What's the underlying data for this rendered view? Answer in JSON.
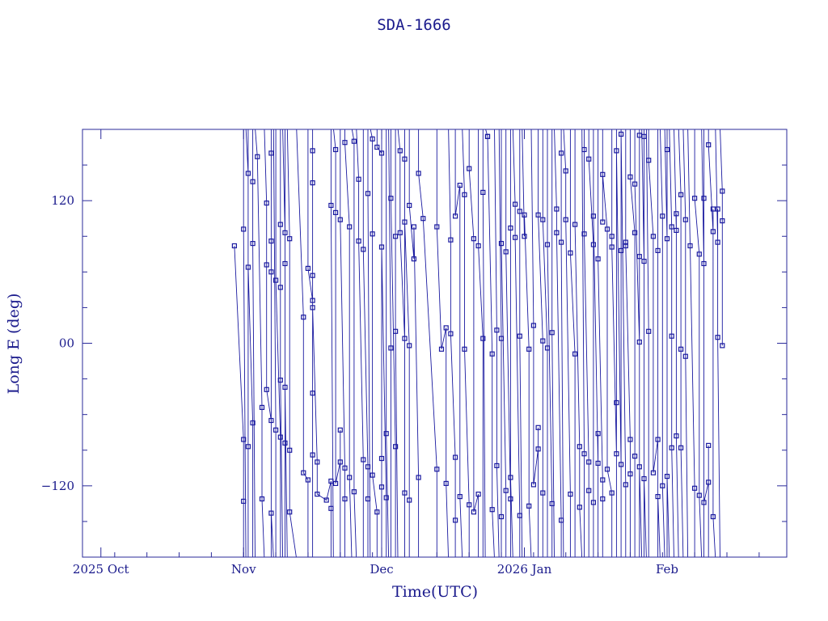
{
  "chart_data": {
    "type": "scatter",
    "title": "SDA-1666",
    "xlabel": "Time(UTC)",
    "ylabel": "Long E (deg)",
    "xlim": [
      "2025-09-27",
      "2026-02-27"
    ],
    "ylim": [
      -180,
      180
    ],
    "x_ticks": [
      {
        "date": "2025-10-01",
        "label": "2025 Oct"
      },
      {
        "date": "2025-11-01",
        "label": "Nov"
      },
      {
        "date": "2025-12-01",
        "label": "Dec"
      },
      {
        "date": "2026-01-01",
        "label": "2026 Jan"
      },
      {
        "date": "2026-02-01",
        "label": "Feb"
      }
    ],
    "y_ticks": [
      {
        "value": 120,
        "label": "120"
      },
      {
        "value": 0,
        "label": "00"
      },
      {
        "value": -120,
        "label": "−120"
      }
    ],
    "colors": {
      "line": "#1a1aa0",
      "text": "#1a1a8c",
      "frame": "#2a2a9a"
    },
    "points": [
      {
        "x": "2025-10-30",
        "y": 82
      },
      {
        "x": "2025-11-01",
        "y": -81
      },
      {
        "x": "2025-11-01",
        "y": -133
      },
      {
        "x": "2025-11-01",
        "y": 96
      },
      {
        "x": "2025-11-02",
        "y": 143
      },
      {
        "x": "2025-11-02",
        "y": -87
      },
      {
        "x": "2025-11-02",
        "y": 64
      },
      {
        "x": "2025-11-03",
        "y": -67
      },
      {
        "x": "2025-11-03",
        "y": 136
      },
      {
        "x": "2025-11-03",
        "y": 84
      },
      {
        "x": "2025-11-04",
        "y": 157
      },
      {
        "x": "2025-11-05",
        "y": -54
      },
      {
        "x": "2025-11-05",
        "y": -131
      },
      {
        "x": "2025-11-06",
        "y": 118
      },
      {
        "x": "2025-11-06",
        "y": 66
      },
      {
        "x": "2025-11-06",
        "y": -39
      },
      {
        "x": "2025-11-07",
        "y": -65
      },
      {
        "x": "2025-11-07",
        "y": 86
      },
      {
        "x": "2025-11-07",
        "y": 160
      },
      {
        "x": "2025-11-07",
        "y": 60
      },
      {
        "x": "2025-11-07",
        "y": -143
      },
      {
        "x": "2025-11-08",
        "y": -73
      },
      {
        "x": "2025-11-08",
        "y": 53
      },
      {
        "x": "2025-11-09",
        "y": -79
      },
      {
        "x": "2025-11-09",
        "y": 100
      },
      {
        "x": "2025-11-09",
        "y": 47
      },
      {
        "x": "2025-11-09",
        "y": -31
      },
      {
        "x": "2025-11-10",
        "y": 93
      },
      {
        "x": "2025-11-10",
        "y": -84
      },
      {
        "x": "2025-11-10",
        "y": 67
      },
      {
        "x": "2025-11-10",
        "y": -37
      },
      {
        "x": "2025-11-11",
        "y": 88
      },
      {
        "x": "2025-11-11",
        "y": -90
      },
      {
        "x": "2025-11-11",
        "y": -142
      },
      {
        "x": "2025-11-14",
        "y": 22
      },
      {
        "x": "2025-11-14",
        "y": -109
      },
      {
        "x": "2025-11-15",
        "y": -115
      },
      {
        "x": "2025-11-15",
        "y": 63
      },
      {
        "x": "2025-11-16",
        "y": 36
      },
      {
        "x": "2025-11-16",
        "y": -42
      },
      {
        "x": "2025-11-16",
        "y": -94
      },
      {
        "x": "2025-11-16",
        "y": 162
      },
      {
        "x": "2025-11-16",
        "y": 135
      },
      {
        "x": "2025-11-16",
        "y": 57
      },
      {
        "x": "2025-11-16",
        "y": 30
      },
      {
        "x": "2025-11-17",
        "y": -100
      },
      {
        "x": "2025-11-17",
        "y": -127
      },
      {
        "x": "2025-11-19",
        "y": -132
      },
      {
        "x": "2025-11-20",
        "y": -116
      },
      {
        "x": "2025-11-20",
        "y": -139
      },
      {
        "x": "2025-11-20",
        "y": 116
      },
      {
        "x": "2025-11-21",
        "y": 163
      },
      {
        "x": "2025-11-21",
        "y": 110
      },
      {
        "x": "2025-11-21",
        "y": -118
      },
      {
        "x": "2025-11-22",
        "y": -100
      },
      {
        "x": "2025-11-22",
        "y": -73
      },
      {
        "x": "2025-11-22",
        "y": 104
      },
      {
        "x": "2025-11-23",
        "y": -105
      },
      {
        "x": "2025-11-23",
        "y": -131
      },
      {
        "x": "2025-11-23",
        "y": 169
      },
      {
        "x": "2025-11-24",
        "y": 98
      },
      {
        "x": "2025-11-24",
        "y": -113
      },
      {
        "x": "2025-11-25",
        "y": 170
      },
      {
        "x": "2025-11-25",
        "y": -125
      },
      {
        "x": "2025-11-26",
        "y": 138
      },
      {
        "x": "2025-11-26",
        "y": 86
      },
      {
        "x": "2025-11-27",
        "y": -98
      },
      {
        "x": "2025-11-27",
        "y": 79
      },
      {
        "x": "2025-11-28",
        "y": -104
      },
      {
        "x": "2025-11-28",
        "y": -131
      },
      {
        "x": "2025-11-28",
        "y": 126
      },
      {
        "x": "2025-11-29",
        "y": 172
      },
      {
        "x": "2025-11-29",
        "y": 92
      },
      {
        "x": "2025-11-29",
        "y": -111
      },
      {
        "x": "2025-11-30",
        "y": -142
      },
      {
        "x": "2025-11-30",
        "y": 165
      },
      {
        "x": "2025-12-01",
        "y": 160
      },
      {
        "x": "2025-12-01",
        "y": -97
      },
      {
        "x": "2025-12-01",
        "y": -121
      },
      {
        "x": "2025-12-01",
        "y": 81
      },
      {
        "x": "2025-12-02",
        "y": -130
      },
      {
        "x": "2025-12-02",
        "y": -76
      },
      {
        "x": "2025-12-03",
        "y": -4
      },
      {
        "x": "2025-12-03",
        "y": 122
      },
      {
        "x": "2025-12-04",
        "y": -87
      },
      {
        "x": "2025-12-04",
        "y": 90
      },
      {
        "x": "2025-12-04",
        "y": 10
      },
      {
        "x": "2025-12-05",
        "y": 162
      },
      {
        "x": "2025-12-05",
        "y": 93
      },
      {
        "x": "2025-12-06",
        "y": 4
      },
      {
        "x": "2025-12-06",
        "y": 155
      },
      {
        "x": "2025-12-06",
        "y": -126
      },
      {
        "x": "2025-12-06",
        "y": 102
      },
      {
        "x": "2025-12-07",
        "y": -2
      },
      {
        "x": "2025-12-07",
        "y": -132
      },
      {
        "x": "2025-12-07",
        "y": 116
      },
      {
        "x": "2025-12-08",
        "y": 71
      },
      {
        "x": "2025-12-08",
        "y": 98
      },
      {
        "x": "2025-12-09",
        "y": -113
      },
      {
        "x": "2025-12-09",
        "y": 143
      },
      {
        "x": "2025-12-10",
        "y": 105
      },
      {
        "x": "2025-12-13",
        "y": -106
      },
      {
        "x": "2025-12-13",
        "y": 98
      },
      {
        "x": "2025-12-14",
        "y": -5
      },
      {
        "x": "2025-12-15",
        "y": 13
      },
      {
        "x": "2025-12-15",
        "y": -118
      },
      {
        "x": "2025-12-16",
        "y": 87
      },
      {
        "x": "2025-12-16",
        "y": 8
      },
      {
        "x": "2025-12-17",
        "y": -96
      },
      {
        "x": "2025-12-17",
        "y": -149
      },
      {
        "x": "2025-12-17",
        "y": 107
      },
      {
        "x": "2025-12-18",
        "y": 133
      },
      {
        "x": "2025-12-18",
        "y": -129
      },
      {
        "x": "2025-12-19",
        "y": 125
      },
      {
        "x": "2025-12-19",
        "y": -5
      },
      {
        "x": "2025-12-20",
        "y": -136
      },
      {
        "x": "2025-12-20",
        "y": 147
      },
      {
        "x": "2025-12-21",
        "y": 88
      },
      {
        "x": "2025-12-21",
        "y": -142
      },
      {
        "x": "2025-12-22",
        "y": -127
      },
      {
        "x": "2025-12-22",
        "y": 82
      },
      {
        "x": "2025-12-23",
        "y": 4
      },
      {
        "x": "2025-12-23",
        "y": 127
      },
      {
        "x": "2025-12-24",
        "y": 174
      },
      {
        "x": "2025-12-24",
        "y": 174
      },
      {
        "x": "2025-12-25",
        "y": -9
      },
      {
        "x": "2025-12-25",
        "y": -140
      },
      {
        "x": "2025-12-26",
        "y": 11
      },
      {
        "x": "2025-12-26",
        "y": -103
      },
      {
        "x": "2025-12-27",
        "y": 4
      },
      {
        "x": "2025-12-27",
        "y": -146
      },
      {
        "x": "2025-12-27",
        "y": 84
      },
      {
        "x": "2025-12-28",
        "y": -124
      },
      {
        "x": "2025-12-28",
        "y": 77
      },
      {
        "x": "2025-12-29",
        "y": -131
      },
      {
        "x": "2025-12-29",
        "y": 97
      },
      {
        "x": "2025-12-29",
        "y": -113
      },
      {
        "x": "2025-12-30",
        "y": 117
      },
      {
        "x": "2025-12-30",
        "y": 89
      },
      {
        "x": "2025-12-31",
        "y": -145
      },
      {
        "x": "2025-12-31",
        "y": 111
      },
      {
        "x": "2025-12-31",
        "y": 6
      },
      {
        "x": "2026-01-01",
        "y": 90
      },
      {
        "x": "2026-01-01",
        "y": 108
      },
      {
        "x": "2026-01-02",
        "y": -5
      },
      {
        "x": "2026-01-02",
        "y": -137
      },
      {
        "x": "2026-01-03",
        "y": 15
      },
      {
        "x": "2026-01-03",
        "y": -119
      },
      {
        "x": "2026-01-04",
        "y": -89
      },
      {
        "x": "2026-01-04",
        "y": -71
      },
      {
        "x": "2026-01-04",
        "y": 108
      },
      {
        "x": "2026-01-05",
        "y": 2
      },
      {
        "x": "2026-01-05",
        "y": -126
      },
      {
        "x": "2026-01-05",
        "y": 104
      },
      {
        "x": "2026-01-06",
        "y": -4
      },
      {
        "x": "2026-01-06",
        "y": 83
      },
      {
        "x": "2026-01-07",
        "y": -135
      },
      {
        "x": "2026-01-07",
        "y": 9
      },
      {
        "x": "2026-01-08",
        "y": 113
      },
      {
        "x": "2026-01-08",
        "y": 93
      },
      {
        "x": "2026-01-09",
        "y": -149
      },
      {
        "x": "2026-01-09",
        "y": 160
      },
      {
        "x": "2026-01-09",
        "y": 85
      },
      {
        "x": "2026-01-10",
        "y": 145
      },
      {
        "x": "2026-01-10",
        "y": 104
      },
      {
        "x": "2026-01-11",
        "y": -127
      },
      {
        "x": "2026-01-11",
        "y": 76
      },
      {
        "x": "2026-01-12",
        "y": -9
      },
      {
        "x": "2026-01-12",
        "y": 100
      },
      {
        "x": "2026-01-13",
        "y": -87
      },
      {
        "x": "2026-01-13",
        "y": -138
      },
      {
        "x": "2026-01-14",
        "y": -93
      },
      {
        "x": "2026-01-14",
        "y": 163
      },
      {
        "x": "2026-01-14",
        "y": 92
      },
      {
        "x": "2026-01-15",
        "y": -100
      },
      {
        "x": "2026-01-15",
        "y": -124
      },
      {
        "x": "2026-01-15",
        "y": 155
      },
      {
        "x": "2026-01-16",
        "y": 83
      },
      {
        "x": "2026-01-16",
        "y": -134
      },
      {
        "x": "2026-01-16",
        "y": 107
      },
      {
        "x": "2026-01-17",
        "y": -101
      },
      {
        "x": "2026-01-17",
        "y": -76
      },
      {
        "x": "2026-01-17",
        "y": 71
      },
      {
        "x": "2026-01-18",
        "y": -115
      },
      {
        "x": "2026-01-18",
        "y": -131
      },
      {
        "x": "2026-01-18",
        "y": 102
      },
      {
        "x": "2026-01-18",
        "y": 142
      },
      {
        "x": "2026-01-19",
        "y": 96
      },
      {
        "x": "2026-01-19",
        "y": -106
      },
      {
        "x": "2026-01-20",
        "y": -126
      },
      {
        "x": "2026-01-20",
        "y": 90
      },
      {
        "x": "2026-01-20",
        "y": 81
      },
      {
        "x": "2026-01-21",
        "y": -93
      },
      {
        "x": "2026-01-21",
        "y": -50
      },
      {
        "x": "2026-01-21",
        "y": 162
      },
      {
        "x": "2026-01-22",
        "y": -102
      },
      {
        "x": "2026-01-22",
        "y": 78
      },
      {
        "x": "2026-01-22",
        "y": 176
      },
      {
        "x": "2026-01-23",
        "y": -119
      },
      {
        "x": "2026-01-23",
        "y": 85
      },
      {
        "x": "2026-01-23",
        "y": 82
      },
      {
        "x": "2026-01-24",
        "y": -81
      },
      {
        "x": "2026-01-24",
        "y": -110
      },
      {
        "x": "2026-01-24",
        "y": 140
      },
      {
        "x": "2026-01-25",
        "y": 93
      },
      {
        "x": "2026-01-25",
        "y": -95
      },
      {
        "x": "2026-01-25",
        "y": 134
      },
      {
        "x": "2026-01-26",
        "y": 1
      },
      {
        "x": "2026-01-26",
        "y": 73
      },
      {
        "x": "2026-01-26",
        "y": 175
      },
      {
        "x": "2026-01-26",
        "y": -104
      },
      {
        "x": "2026-01-27",
        "y": 69
      },
      {
        "x": "2026-01-27",
        "y": 174
      },
      {
        "x": "2026-01-27",
        "y": -114
      },
      {
        "x": "2026-01-28",
        "y": 10
      },
      {
        "x": "2026-01-28",
        "y": 154
      },
      {
        "x": "2026-01-29",
        "y": 90
      },
      {
        "x": "2026-01-29",
        "y": -109
      },
      {
        "x": "2026-01-30",
        "y": -81
      },
      {
        "x": "2026-01-30",
        "y": 78
      },
      {
        "x": "2026-01-30",
        "y": -129
      },
      {
        "x": "2026-01-31",
        "y": 107
      },
      {
        "x": "2026-01-31",
        "y": -120
      },
      {
        "x": "2026-02-01",
        "y": 88
      },
      {
        "x": "2026-02-01",
        "y": 163
      },
      {
        "x": "2026-02-01",
        "y": -112
      },
      {
        "x": "2026-02-02",
        "y": 98
      },
      {
        "x": "2026-02-02",
        "y": 6
      },
      {
        "x": "2026-02-02",
        "y": -88
      },
      {
        "x": "2026-02-03",
        "y": 95
      },
      {
        "x": "2026-02-03",
        "y": 109
      },
      {
        "x": "2026-02-03",
        "y": -78
      },
      {
        "x": "2026-02-04",
        "y": 125
      },
      {
        "x": "2026-02-04",
        "y": -5
      },
      {
        "x": "2026-02-04",
        "y": -88
      },
      {
        "x": "2026-02-05",
        "y": 104
      },
      {
        "x": "2026-02-05",
        "y": -11
      },
      {
        "x": "2026-02-06",
        "y": 82
      },
      {
        "x": "2026-02-07",
        "y": -122
      },
      {
        "x": "2026-02-07",
        "y": 122
      },
      {
        "x": "2026-02-08",
        "y": 75
      },
      {
        "x": "2026-02-08",
        "y": -128
      },
      {
        "x": "2026-02-09",
        "y": 67
      },
      {
        "x": "2026-02-09",
        "y": 122
      },
      {
        "x": "2026-02-09",
        "y": -134
      },
      {
        "x": "2026-02-10",
        "y": -117
      },
      {
        "x": "2026-02-10",
        "y": -86
      },
      {
        "x": "2026-02-10",
        "y": 167
      },
      {
        "x": "2026-02-11",
        "y": 94
      },
      {
        "x": "2026-02-11",
        "y": 113
      },
      {
        "x": "2026-02-11",
        "y": -146
      },
      {
        "x": "2026-02-12",
        "y": 85
      },
      {
        "x": "2026-02-12",
        "y": 113
      },
      {
        "x": "2026-02-12",
        "y": 5
      },
      {
        "x": "2026-02-13",
        "y": 128
      },
      {
        "x": "2026-02-13",
        "y": 103
      },
      {
        "x": "2026-02-13",
        "y": -2
      }
    ]
  }
}
